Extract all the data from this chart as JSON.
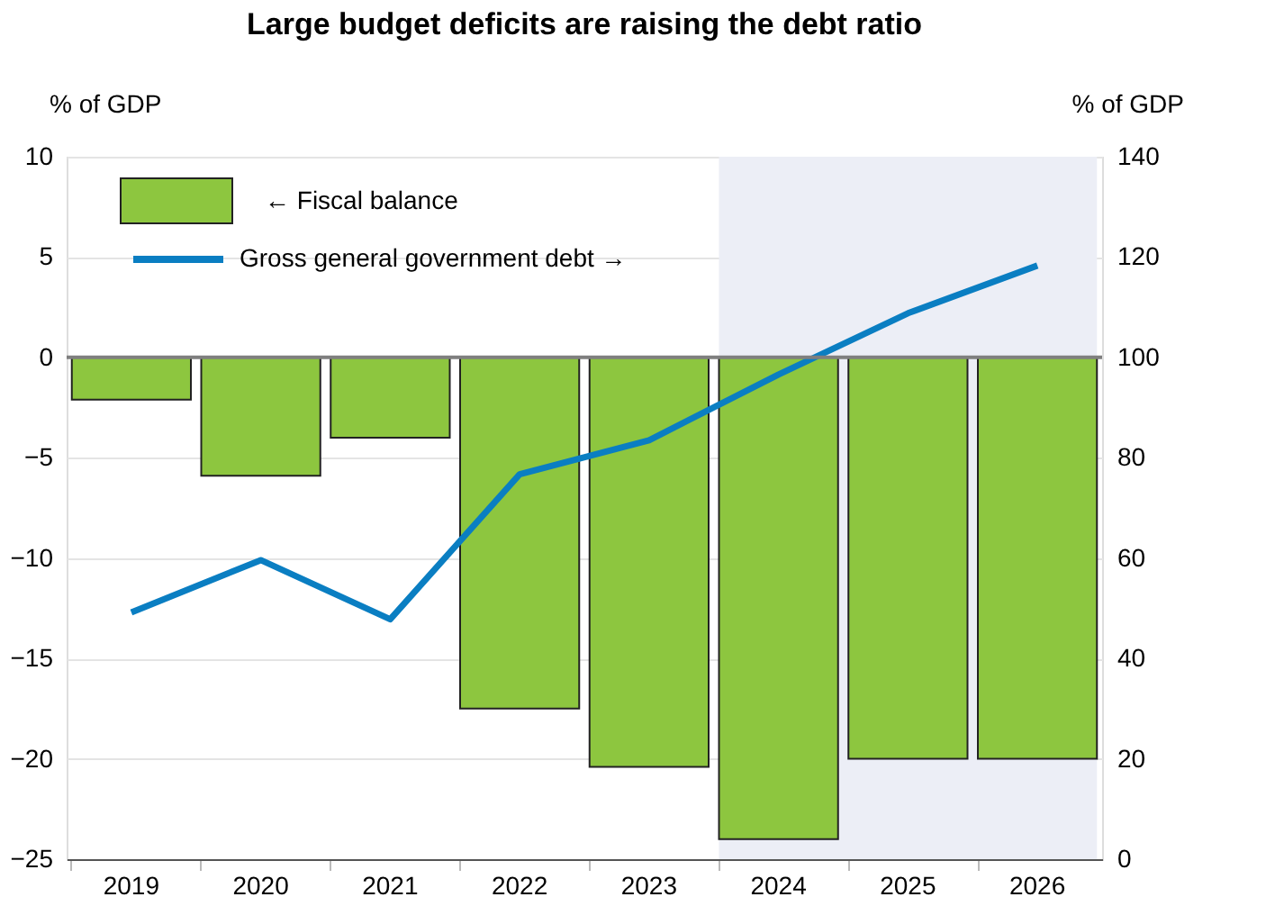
{
  "chart_data": {
    "type": "bar",
    "title": "Large budget deficits are raising the debt ratio",
    "ylabel": "% of GDP",
    "y2label": "% of GDP",
    "categories": [
      "2019",
      "2020",
      "2021",
      "2022",
      "2023",
      "2024",
      "2025",
      "2026"
    ],
    "series": [
      {
        "name": "← Fiscal balance",
        "color": "#8dc63f",
        "values": [
          -2.1,
          -5.9,
          -4.0,
          -17.5,
          -20.4,
          -24.0,
          -20.0,
          -20.0
        ]
      },
      {
        "name": "Gross general government debt →",
        "type": "line",
        "axis": "y2",
        "color": "#0a7ec2",
        "values": [
          49.2,
          59.6,
          47.8,
          76.7,
          83.5,
          96.6,
          108.8,
          118.3
        ]
      }
    ],
    "ylim": [
      -25,
      10
    ],
    "yticks": [
      -25,
      -20,
      -15,
      -10,
      -5,
      0,
      5,
      10
    ],
    "y2lim": [
      0,
      140
    ],
    "y2ticks": [
      0,
      20,
      40,
      60,
      80,
      100,
      120,
      140
    ],
    "bands": [
      {
        "axis": "x",
        "from": "2024",
        "to": "2026",
        "color": "#eceef6"
      }
    ],
    "ref_lines": [
      {
        "axis": "y",
        "value": 0,
        "color": "#7f7f7f"
      }
    ],
    "grid": "y",
    "legend": "top left",
    "marker": "none",
    "line_style": "solid"
  }
}
